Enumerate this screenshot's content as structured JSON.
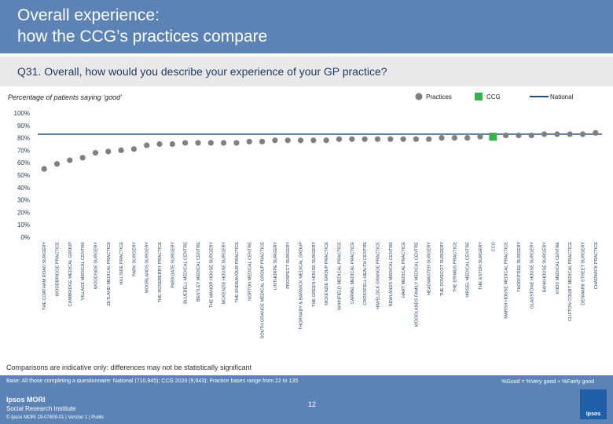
{
  "header": {
    "title_line1": "Overall experience:",
    "title_line2": "how the CCG’s practices compare"
  },
  "question": "Q31. Overall, how would you describe your experience of your GP practice?",
  "subtitle": "Percentage of patients saying ‘good’",
  "colors": {
    "header_bg": "#5b83b5",
    "practice": "#7f7f7f",
    "ccg": "#36b34a",
    "national": "#1f4e8c",
    "axis_text": "#1f3a66"
  },
  "legend": {
    "practices": "Practices",
    "ccg": "CCG",
    "national": "National"
  },
  "chart_data": {
    "type": "scatter",
    "title": "",
    "xlabel": "",
    "ylabel": "",
    "ylim": [
      0,
      100
    ],
    "y_ticks": [
      "0%",
      "10%",
      "20%",
      "30%",
      "40%",
      "50%",
      "60%",
      "70%",
      "80%",
      "90%",
      "100%"
    ],
    "series": [
      {
        "name": "Practices",
        "kind": "practice",
        "values": [
          {
            "label": "THE COATHAM ROAD SURGERY",
            "value": 55
          },
          {
            "label": "WOODBRIDGE PRACTICE",
            "value": 59
          },
          {
            "label": "CAMBRIDGE MEDICAL GROUP",
            "value": 62
          },
          {
            "label": "VILLAGE MEDICAL CENTRE",
            "value": 64
          },
          {
            "label": "WOODSIDE SURGERY",
            "value": 68
          },
          {
            "label": "ZETLAND MEDICAL PRACTICE",
            "value": 69
          },
          {
            "label": "HILLSIDE PRACTICE",
            "value": 70
          },
          {
            "label": "PARK SURGERY",
            "value": 71
          },
          {
            "label": "MOORLANDS SURGERY",
            "value": 74
          },
          {
            "label": "THE ROSEBERRY PRACTICE",
            "value": 75
          },
          {
            "label": "PARKGATE SURGERY",
            "value": 75
          },
          {
            "label": "BLUEBELL MEDICAL CENTRE",
            "value": 76
          },
          {
            "label": "BENTLEY MEDICAL CENTRE",
            "value": 76
          },
          {
            "label": "THE MANOR HOUSE SURGERY",
            "value": 76
          },
          {
            "label": "MCKENZIE HOUSE SURGERY",
            "value": 76
          },
          {
            "label": "THE ENDEAVOUR PRACTICE",
            "value": 76
          },
          {
            "label": "NORTON MEDICAL CENTRE",
            "value": 77
          },
          {
            "label": "SOUTH GRANGE MEDICAL GROUP PRACTICE",
            "value": 77
          },
          {
            "label": "LINTHORPE SURGERY",
            "value": 78
          },
          {
            "label": "PROSPECT SURGERY",
            "value": 78
          },
          {
            "label": "THORNABY & BARWICK MEDICAL GROUP",
            "value": 78
          },
          {
            "label": "THE GREEN HOUSE SURGERY",
            "value": 78
          },
          {
            "label": "MCKENZIE GROUP PRACTICE",
            "value": 78
          },
          {
            "label": "WHINFIELD MEDICAL PRACTICE",
            "value": 79
          },
          {
            "label": "CARMEL MEDICAL PRACTICE",
            "value": 79
          },
          {
            "label": "CROSSFELL HEALTH CENTRE",
            "value": 79
          },
          {
            "label": "HAVELOCK GRANGE PRACTICE",
            "value": 79
          },
          {
            "label": "NEWLANDS MEDICAL CENTRE",
            "value": 79
          },
          {
            "label": "HART MEDICAL PRACTICE",
            "value": 79
          },
          {
            "label": "WOODLANDS FAMILY MEDICAL CENTRE",
            "value": 79
          },
          {
            "label": "HEADMASTER SURGERY",
            "value": 79
          },
          {
            "label": "THE DOVECOT SURGERY",
            "value": 80
          },
          {
            "label": "THE ERIMUS PRACTICE",
            "value": 80
          },
          {
            "label": "HIRSEL MEDICAL CENTRE",
            "value": 80
          },
          {
            "label": "THE ESTON SURGERY",
            "value": 81
          }
        ]
      },
      {
        "name": "CCG",
        "kind": "ccg",
        "values": [
          {
            "label": "CCG",
            "value": 81
          }
        ]
      },
      {
        "name": "Practices",
        "kind": "practice",
        "values": [
          {
            "label": "MARSH HOUSE MEDICAL PRACTICE",
            "value": 82
          },
          {
            "label": "THORNTREE SURGERY",
            "value": 82
          },
          {
            "label": "GLADSTONE HOUSE SURGERY",
            "value": 82
          },
          {
            "label": "BANKHOUSE SURGERY",
            "value": 83
          },
          {
            "label": "KNOX MEDICAL CENTRE",
            "value": 83
          },
          {
            "label": "CLIFTON COURT MEDICAL PRACTICE",
            "value": 83
          },
          {
            "label": "DENMARK STREET SURGERY",
            "value": 83
          },
          {
            "label": "CHADWICK PRACTICE",
            "value": 84
          }
        ]
      }
    ],
    "national_value": 83
  },
  "notes": {
    "comparison": "Comparisons are indicative only: differences may not be statistically significant",
    "base": "Base: All those completing a questionnaire: National (710,945); CCG 2020 (9,643); Practice bases range from 22 to 135",
    "definition": "%Good = %Very good + %Fairly good"
  },
  "footer": {
    "brand_line1": "Ipsos MORI",
    "brand_line2": "Social Research Institute",
    "copyright": "© Ipsos MORI    19-07809-01 | Version 1 | Public",
    "page": "12",
    "logo_text": "Ipsos"
  }
}
